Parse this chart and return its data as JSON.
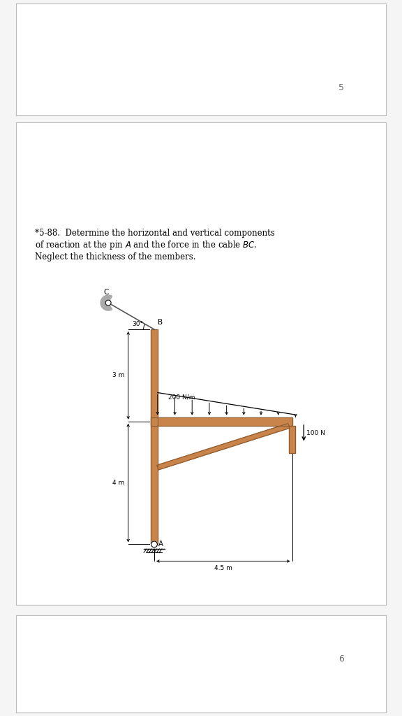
{
  "title_number": "*5-88.",
  "title_text_parts": [
    "Determine the horizontal and vertical components",
    "of reaction at the pin ",
    "A",
    " and the force in the cable ",
    "BC",
    ".",
    "Neglect the thickness of the members."
  ],
  "wood_color": "#c8844a",
  "wood_dark": "#8a5a30",
  "bg_color": "#ffffff",
  "page_bg": "#f5f5f5",
  "border_color": "#cccccc",
  "angle_label": "30°",
  "dist_load_label": "200 N/m",
  "point_load_label": "100 N",
  "dim_label_beam": "4.5 m",
  "dim_label_3m": "3 m",
  "dim_label_4m": "4 m",
  "page_num_top": "5",
  "page_num_bot": "6"
}
